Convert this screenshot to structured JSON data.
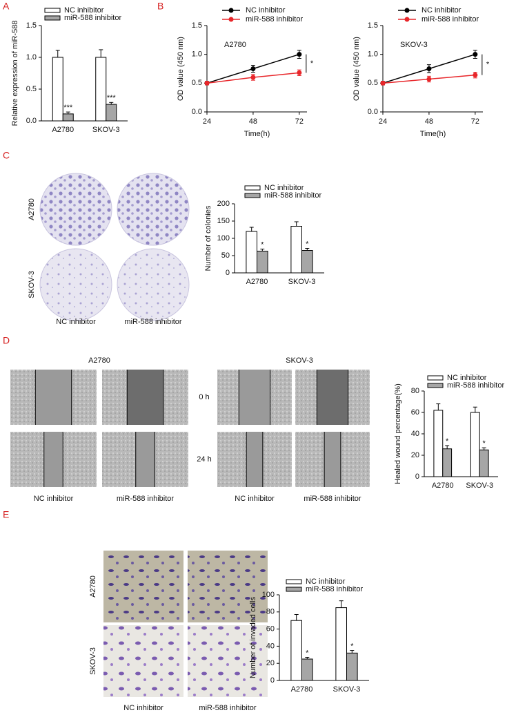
{
  "panel_labels": [
    "A",
    "B",
    "C",
    "D",
    "E"
  ],
  "colony_images": {
    "rows": [
      "A2780",
      "SKOV-3"
    ],
    "columns": [
      "NC inhibitor",
      "miR-588 inhibitor"
    ]
  },
  "wound_images": {
    "groups": [
      "A2780",
      "SKOV-3"
    ],
    "times": [
      "0 h",
      "24 h"
    ],
    "columns": [
      "NC inhibitor",
      "miR-588 inhibitor"
    ]
  },
  "invasion_images": {
    "rows": [
      "A2780",
      "SKOV-3"
    ],
    "columns": [
      "NC inhibitor",
      "miR-588 inhibitor"
    ]
  },
  "chart_data": [
    {
      "type": "bar",
      "ylabel": "Relative expression of miR-588",
      "categories": [
        "A2780",
        "SKOV-3"
      ],
      "ylim": [
        0,
        1.5
      ],
      "yticks": [
        {
          "value": 0,
          "label": "0.0"
        },
        {
          "value": 0.5,
          "label": "0.5"
        },
        {
          "value": 1,
          "label": "1.0"
        },
        {
          "value": 1.5,
          "label": "1.5"
        }
      ],
      "series": [
        {
          "name": "NC inhibitor",
          "color": "#ffffff",
          "values": [
            1.0,
            1.0
          ],
          "errors": [
            0.11,
            0.12
          ]
        },
        {
          "name": "miR-588 inhibitor",
          "color": "#a6a6a6",
          "values": [
            0.11,
            0.26
          ],
          "errors": [
            0.03,
            0.03
          ],
          "annotations": [
            "***",
            "***"
          ]
        }
      ]
    },
    {
      "type": "line",
      "label": "A2780",
      "xlabel": "Time(h)",
      "ylabel": "OD value (450 nm)",
      "x": [
        24,
        48,
        72
      ],
      "xlim": [
        24,
        76
      ],
      "xticks": [
        24,
        48,
        72
      ],
      "ylim": [
        0,
        1.5
      ],
      "yticks": [
        {
          "value": 0,
          "label": "0.0"
        },
        {
          "value": 0.5,
          "label": "0.5"
        },
        {
          "value": 1,
          "label": "1.0"
        },
        {
          "value": 1.5,
          "label": "1.5"
        }
      ],
      "significance": "*",
      "series": [
        {
          "name": "NC inhibitor",
          "color": "#000000",
          "values": [
            0.5,
            0.75,
            1.0
          ],
          "errors": [
            0.03,
            0.06,
            0.07
          ]
        },
        {
          "name": "miR-588 inhibitor",
          "color": "#e8262a",
          "values": [
            0.5,
            0.6,
            0.68
          ],
          "errors": [
            0.03,
            0.05,
            0.05
          ]
        }
      ]
    },
    {
      "type": "line",
      "label": "SKOV-3",
      "xlabel": "Time(h)",
      "ylabel": "OD value (450 nm)",
      "x": [
        24,
        48,
        72
      ],
      "xlim": [
        24,
        76
      ],
      "xticks": [
        24,
        48,
        72
      ],
      "ylim": [
        0,
        1.5
      ],
      "yticks": [
        {
          "value": 0,
          "label": "0.0"
        },
        {
          "value": 0.5,
          "label": "0.5"
        },
        {
          "value": 1,
          "label": "1.0"
        },
        {
          "value": 1.5,
          "label": "1.5"
        }
      ],
      "significance": "*",
      "series": [
        {
          "name": "NC inhibitor",
          "color": "#000000",
          "values": [
            0.5,
            0.75,
            1.0
          ],
          "errors": [
            0.03,
            0.07,
            0.07
          ]
        },
        {
          "name": "miR-588 inhibitor",
          "color": "#e8262a",
          "values": [
            0.5,
            0.57,
            0.64
          ],
          "errors": [
            0.03,
            0.05,
            0.05
          ]
        }
      ]
    },
    {
      "type": "bar",
      "ylabel": "Number of colonies",
      "categories": [
        "A2780",
        "SKOV-3"
      ],
      "ylim": [
        0,
        200
      ],
      "yticks": [
        0,
        50,
        100,
        150,
        200
      ],
      "series": [
        {
          "name": "NC inhibitor",
          "color": "#ffffff",
          "values": [
            120,
            135
          ],
          "errors": [
            12,
            13
          ]
        },
        {
          "name": "miR-588 inhibitor",
          "color": "#a6a6a6",
          "values": [
            63,
            65
          ],
          "errors": [
            6,
            6
          ],
          "annotations": [
            "*",
            "*"
          ]
        }
      ]
    },
    {
      "type": "bar",
      "ylabel": "Healed wound percentage(%)",
      "categories": [
        "A2780",
        "SKOV-3"
      ],
      "ylim": [
        0,
        80
      ],
      "yticks": [
        0,
        20,
        40,
        60,
        80
      ],
      "series": [
        {
          "name": "NC inhibitor",
          "color": "#ffffff",
          "values": [
            62,
            60
          ],
          "errors": [
            6,
            5
          ]
        },
        {
          "name": "miR-588 inhibitor",
          "color": "#a6a6a6",
          "values": [
            26,
            25
          ],
          "errors": [
            3,
            2
          ],
          "annotations": [
            "*",
            "*"
          ]
        }
      ]
    },
    {
      "type": "bar",
      "ylabel": "Number of invaded cells",
      "categories": [
        "A2780",
        "SKOV-3"
      ],
      "ylim": [
        0,
        100
      ],
      "yticks": [
        0,
        20,
        40,
        60,
        80,
        100
      ],
      "series": [
        {
          "name": "NC inhibitor",
          "color": "#ffffff",
          "values": [
            70,
            85
          ],
          "errors": [
            7,
            8
          ]
        },
        {
          "name": "miR-588 inhibitor",
          "color": "#a6a6a6",
          "values": [
            25,
            32
          ],
          "errors": [
            2,
            3
          ],
          "annotations": [
            "*",
            "*"
          ]
        }
      ]
    }
  ]
}
